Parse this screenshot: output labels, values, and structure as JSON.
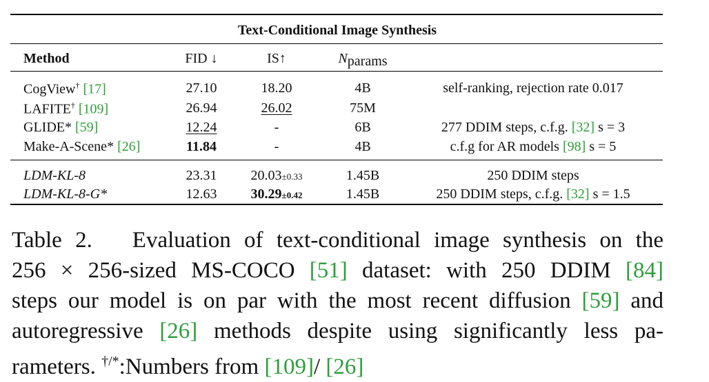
{
  "table": {
    "title": "Text-Conditional Image Synthesis",
    "headers": {
      "method": "Method",
      "fid": "FID ↓",
      "is": "IS↑",
      "nparams_n": "N",
      "nparams_sub": "params"
    },
    "rows": [
      {
        "method": "CogView",
        "mark": "†",
        "cite": "[17]",
        "fid": "27.10",
        "is": "18.20",
        "is_pm": "",
        "params": "4B",
        "note_pre": "self-ranking, rejection rate 0.017",
        "note_cite": "",
        "note_post": ""
      },
      {
        "method": "LAFITE",
        "mark": "†",
        "cite": "[109]",
        "fid": "26.94",
        "is": "26.02",
        "is_pm": "",
        "params": "75M",
        "note_pre": "",
        "note_cite": "",
        "note_post": ""
      },
      {
        "method": "GLIDE",
        "mark": "*",
        "cite": "[59]",
        "fid": "12.24",
        "is": "-",
        "is_pm": "",
        "params": "6B",
        "note_pre": "277 DDIM steps, c.f.g. ",
        "note_cite": "[32]",
        "note_post": " s = 3"
      },
      {
        "method": "Make-A-Scene",
        "mark": "*",
        "cite": "[26]",
        "fid": "11.84",
        "is": "-",
        "is_pm": "",
        "params": "4B",
        "note_pre": "c.f.g for AR models ",
        "note_cite": "[98]",
        "note_post": " s = 5"
      },
      {
        "method": "LDM-KL-8",
        "mark": "",
        "cite": "",
        "fid": "23.31",
        "is": "20.03",
        "is_pm": "±0.33",
        "params": "1.45B",
        "note_pre": "250 DDIM steps",
        "note_cite": "",
        "note_post": ""
      },
      {
        "method": "LDM-KL-8-G",
        "mark": "*",
        "cite": "",
        "fid": "12.63",
        "is": "30.29",
        "is_pm": "±0.42",
        "params": "1.45B",
        "note_pre": "250 DDIM steps, c.f.g. ",
        "note_cite": "[32]",
        "note_post": " s = 1.5"
      }
    ]
  },
  "caption": {
    "label": "Table 2.",
    "l1": "Evaluation of text-conditional image synthesis on the",
    "l2a": "256 × 256-sized MS-COCO ",
    "l2c1": "[51]",
    "l2b": " dataset: with 250 DDIM ",
    "l2c2": "[84]",
    "l3a": "steps our model is on par with the most recent diffusion ",
    "l3c": "[59]",
    "l3b": " and",
    "l4a": "autoregressive ",
    "l4c": "[26]",
    "l4b": " methods despite using significantly less pa-",
    "l5a": "rameters. ",
    "l5sup": "†/*",
    "l5b": ":Numbers from ",
    "l5c1": "[109]",
    "l5mid": "/ ",
    "l5c2": "[26]"
  }
}
